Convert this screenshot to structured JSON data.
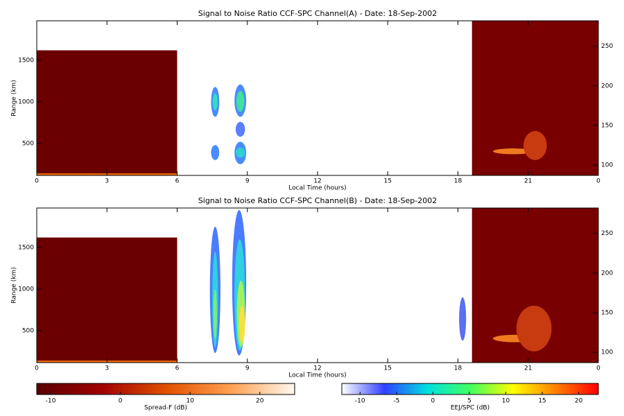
{
  "chart_data": [
    {
      "type": "heatmap",
      "title": "Signal to Noise Ratio CCF-SPC Channel(A) - Date: 18-Sep-2002",
      "xlabel": "Local Time (hours)",
      "ylabel": "Range (km)",
      "xlim": [
        0,
        24
      ],
      "xticks": [
        0,
        3,
        6,
        9,
        12,
        15,
        18,
        21,
        {
          "value": 24,
          "label": "0"
        }
      ],
      "ylim": [
        115,
        1975
      ],
      "yticks": [
        500,
        1000,
        1500
      ],
      "y2lim": [
        87,
        282
      ],
      "y2ticks": [
        100,
        150,
        200,
        250
      ],
      "patches": [
        {
          "shape": "rect",
          "x": [
            0,
            6
          ],
          "y": [
            115,
            1620
          ],
          "color": "#6b0000"
        },
        {
          "shape": "rect",
          "x": [
            0,
            6
          ],
          "y": [
            115,
            140
          ],
          "color": "#e86a10"
        },
        {
          "shape": "rect",
          "x": [
            18.6,
            24
          ],
          "y": [
            115,
            1975
          ],
          "color": "#780000"
        },
        {
          "shape": "ellipse",
          "x": [
            19.5,
            21.2
          ],
          "y": [
            370,
            440
          ],
          "color": "#f07a20"
        },
        {
          "shape": "ellipse",
          "x": [
            20.8,
            21.8
          ],
          "y": [
            300,
            650
          ],
          "color": "#c83a10"
        },
        {
          "shape": "ellipse",
          "x": [
            7.45,
            7.8
          ],
          "y": [
            820,
            1180
          ],
          "color": "#4a8cff"
        },
        {
          "shape": "ellipse",
          "x": [
            7.52,
            7.73
          ],
          "y": [
            900,
            1100
          ],
          "color": "#30e0c0"
        },
        {
          "shape": "ellipse",
          "x": [
            7.45,
            7.8
          ],
          "y": [
            300,
            480
          ],
          "color": "#4a8cff"
        },
        {
          "shape": "ellipse",
          "x": [
            8.45,
            8.95
          ],
          "y": [
            820,
            1210
          ],
          "color": "#4a8cff"
        },
        {
          "shape": "ellipse",
          "x": [
            8.53,
            8.87
          ],
          "y": [
            880,
            1130
          ],
          "color": "#40e0a0"
        },
        {
          "shape": "ellipse",
          "x": [
            8.45,
            8.95
          ],
          "y": [
            250,
            520
          ],
          "color": "#4a8cff"
        },
        {
          "shape": "ellipse",
          "x": [
            8.5,
            8.9
          ],
          "y": [
            330,
            450
          ],
          "color": "#30d0d0"
        },
        {
          "shape": "ellipse",
          "x": [
            8.5,
            8.9
          ],
          "y": [
            580,
            760
          ],
          "color": "#5a80ff"
        }
      ]
    },
    {
      "type": "heatmap",
      "title": "Signal to Noise Ratio CCF-SPC Channel(B) - Date: 18-Sep-2002",
      "xlabel": "Local Time (hours)",
      "ylabel": "Range (km)",
      "xlim": [
        0,
        24
      ],
      "xticks": [
        0,
        3,
        6,
        9,
        12,
        15,
        18,
        21,
        {
          "value": 24,
          "label": "0"
        }
      ],
      "ylim": [
        115,
        1975
      ],
      "yticks": [
        500,
        1000,
        1500
      ],
      "y2lim": [
        87,
        282
      ],
      "y2ticks": [
        100,
        150,
        200,
        250
      ],
      "patches": [
        {
          "shape": "rect",
          "x": [
            0,
            6
          ],
          "y": [
            115,
            1620
          ],
          "color": "#6b0000"
        },
        {
          "shape": "rect",
          "x": [
            0,
            6
          ],
          "y": [
            115,
            140
          ],
          "color": "#e86a10"
        },
        {
          "shape": "rect",
          "x": [
            18.6,
            24
          ],
          "y": [
            115,
            1975
          ],
          "color": "#780000"
        },
        {
          "shape": "ellipse",
          "x": [
            19.5,
            21.3
          ],
          "y": [
            360,
            450
          ],
          "color": "#f07a20"
        },
        {
          "shape": "ellipse",
          "x": [
            20.5,
            22
          ],
          "y": [
            250,
            800
          ],
          "color": "#c83a10"
        },
        {
          "shape": "ellipse",
          "x": [
            7.4,
            7.85
          ],
          "y": [
            230,
            1750
          ],
          "color": "#4a7cff"
        },
        {
          "shape": "ellipse",
          "x": [
            7.5,
            7.75
          ],
          "y": [
            300,
            1450
          ],
          "color": "#30d0e0"
        },
        {
          "shape": "ellipse",
          "x": [
            7.55,
            7.7
          ],
          "y": [
            400,
            1000
          ],
          "color": "#70f080"
        },
        {
          "shape": "ellipse",
          "x": [
            8.35,
            8.95
          ],
          "y": [
            200,
            1950
          ],
          "color": "#4a7cff"
        },
        {
          "shape": "ellipse",
          "x": [
            8.45,
            8.9
          ],
          "y": [
            260,
            1600
          ],
          "color": "#30d0e0"
        },
        {
          "shape": "ellipse",
          "x": [
            8.55,
            8.9
          ],
          "y": [
            300,
            1100
          ],
          "color": "#a0f060"
        },
        {
          "shape": "ellipse",
          "x": [
            8.65,
            8.9
          ],
          "y": [
            350,
            800
          ],
          "color": "#f8e040"
        },
        {
          "shape": "ellipse",
          "x": [
            18.05,
            18.35
          ],
          "y": [
            380,
            900
          ],
          "color": "#5a70f0"
        }
      ]
    }
  ],
  "colorbars": [
    {
      "label": "Spread-F (dB)",
      "lim": [
        -12,
        25
      ],
      "ticks": [
        -10,
        0,
        10,
        20
      ],
      "colors": [
        "#5a0000",
        "#a00000",
        "#e05000",
        "#ffa050",
        "#fff8f0"
      ]
    },
    {
      "label": "EEJ/SPC (dB)",
      "lim": [
        -12.5,
        22.7
      ],
      "ticks": [
        -10,
        -5,
        0,
        5,
        10,
        15,
        20
      ],
      "colors": [
        "#ffffff",
        "#3040ff",
        "#00e0e0",
        "#40ff60",
        "#ffff00",
        "#ff8000",
        "#ff0000"
      ]
    }
  ]
}
